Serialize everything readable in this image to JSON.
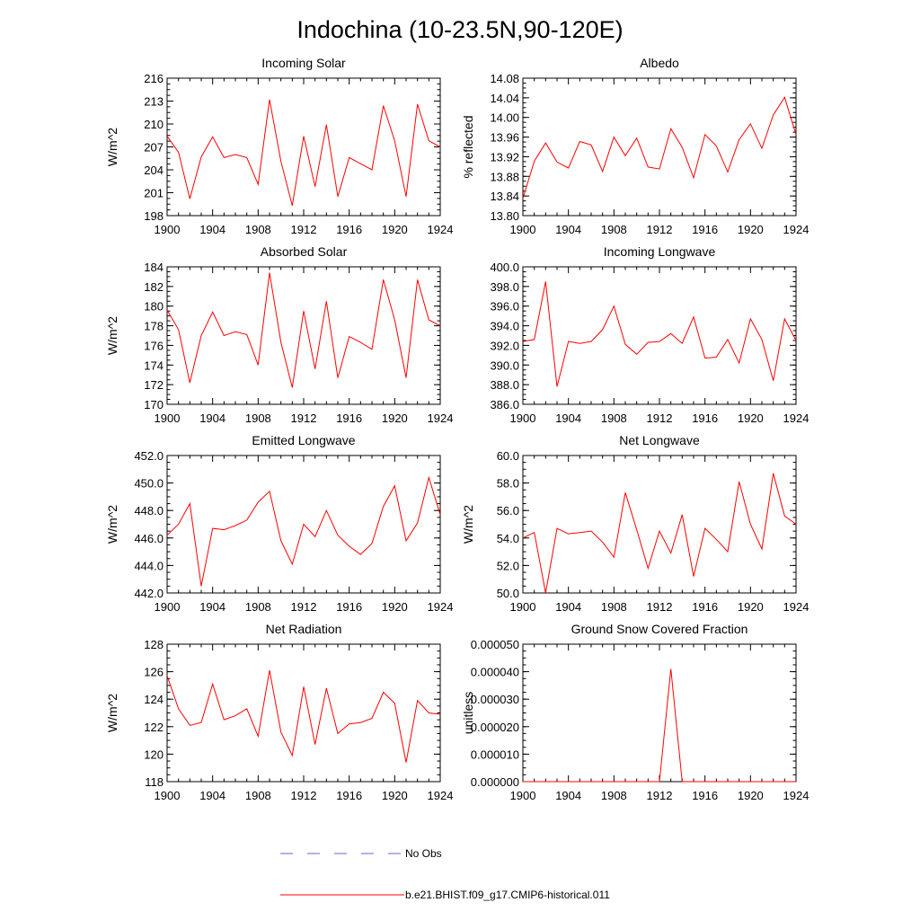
{
  "title": "Indochina (10-23.5N,90-120E)",
  "legend": [
    {
      "label": "No Obs",
      "color": "#6666cc",
      "dash": true
    },
    {
      "label": "b.e21.BHIST.f09_g17.CMIP6-historical.011",
      "color": "#ff0000",
      "dash": false
    }
  ],
  "line_color": "#ff0000",
  "chart_data": [
    {
      "type": "line",
      "title": "Incoming Solar",
      "ylabel": "W/m^2",
      "xlim": [
        1900,
        1924
      ],
      "ylim": [
        198,
        216
      ],
      "xticks": [
        "1900",
        "1904",
        "1908",
        "1912",
        "1916",
        "1920",
        "1924"
      ],
      "yticks": [
        "198",
        "201",
        "204",
        "207",
        "210",
        "213",
        "216"
      ],
      "x": [
        1900,
        1901,
        1902,
        1903,
        1904,
        1905,
        1906,
        1907,
        1908,
        1909,
        1910,
        1911,
        1912,
        1913,
        1914,
        1915,
        1916,
        1917,
        1918,
        1919,
        1920,
        1921,
        1922,
        1923,
        1924
      ],
      "values": [
        208.4,
        206.3,
        200.2,
        205.7,
        208.3,
        205.6,
        206.0,
        205.6,
        202.1,
        213.2,
        205.1,
        199.3,
        208.4,
        201.8,
        209.9,
        200.5,
        205.6,
        204.8,
        204.0,
        212.4,
        207.8,
        200.5,
        212.6,
        207.8,
        207.0
      ]
    },
    {
      "type": "line",
      "title": "Albedo",
      "ylabel": "% reflected",
      "xlim": [
        1900,
        1924
      ],
      "ylim": [
        13.8,
        14.08
      ],
      "xticks": [
        "1900",
        "1904",
        "1908",
        "1912",
        "1916",
        "1920",
        "1924"
      ],
      "yticks": [
        "13.80",
        "13.84",
        "13.88",
        "13.92",
        "13.96",
        "14.00",
        "14.04",
        "14.08"
      ],
      "x": [
        1900,
        1901,
        1902,
        1903,
        1904,
        1905,
        1906,
        1907,
        1908,
        1909,
        1910,
        1911,
        1912,
        1913,
        1914,
        1915,
        1916,
        1917,
        1918,
        1919,
        1920,
        1921,
        1922,
        1923,
        1924
      ],
      "values": [
        13.835,
        13.911,
        13.948,
        13.909,
        13.897,
        13.951,
        13.944,
        13.89,
        13.96,
        13.922,
        13.958,
        13.899,
        13.895,
        13.977,
        13.939,
        13.877,
        13.965,
        13.942,
        13.889,
        13.955,
        13.987,
        13.937,
        14.005,
        14.041,
        13.965
      ]
    },
    {
      "type": "line",
      "title": "Absorbed Solar",
      "ylabel": "W/m^2",
      "xlim": [
        1900,
        1924
      ],
      "ylim": [
        170,
        184
      ],
      "xticks": [
        "1900",
        "1904",
        "1908",
        "1912",
        "1916",
        "1920",
        "1924"
      ],
      "yticks": [
        "170",
        "172",
        "174",
        "176",
        "178",
        "180",
        "182",
        "184"
      ],
      "x": [
        1900,
        1901,
        1902,
        1903,
        1904,
        1905,
        1906,
        1907,
        1908,
        1909,
        1910,
        1911,
        1912,
        1913,
        1914,
        1915,
        1916,
        1917,
        1918,
        1919,
        1920,
        1921,
        1922,
        1923,
        1924
      ],
      "values": [
        179.6,
        177.6,
        172.2,
        177.0,
        179.4,
        177.0,
        177.4,
        177.1,
        174.0,
        183.4,
        176.3,
        171.7,
        179.5,
        173.6,
        180.5,
        172.7,
        176.9,
        176.3,
        175.6,
        182.7,
        178.6,
        172.7,
        182.7,
        178.6,
        178.0
      ]
    },
    {
      "type": "line",
      "title": "Incoming Longwave",
      "ylabel": "",
      "xlim": [
        1900,
        1924
      ],
      "ylim": [
        386.0,
        400.0
      ],
      "xticks": [
        "1900",
        "1904",
        "1908",
        "1912",
        "1916",
        "1920",
        "1924"
      ],
      "yticks": [
        "386.0",
        "388.0",
        "390.0",
        "392.0",
        "394.0",
        "396.0",
        "398.0",
        "400.0"
      ],
      "x": [
        1900,
        1901,
        1902,
        1903,
        1904,
        1905,
        1906,
        1907,
        1908,
        1909,
        1910,
        1911,
        1912,
        1913,
        1914,
        1915,
        1916,
        1917,
        1918,
        1919,
        1920,
        1921,
        1922,
        1923,
        1924
      ],
      "values": [
        392.4,
        392.6,
        398.5,
        387.8,
        392.4,
        392.2,
        392.4,
        393.6,
        396.0,
        392.1,
        391.1,
        392.3,
        392.4,
        393.2,
        392.2,
        394.9,
        390.7,
        390.8,
        392.6,
        390.2,
        394.7,
        392.6,
        388.4,
        394.7,
        392.5
      ]
    },
    {
      "type": "line",
      "title": "Emitted Longwave",
      "ylabel": "W/m^2",
      "xlim": [
        1900,
        1924
      ],
      "ylim": [
        442.0,
        452.0
      ],
      "xticks": [
        "1900",
        "1904",
        "1908",
        "1912",
        "1916",
        "1920",
        "1924"
      ],
      "yticks": [
        "442.0",
        "444.0",
        "446.0",
        "448.0",
        "450.0",
        "452.0"
      ],
      "x": [
        1900,
        1901,
        1902,
        1903,
        1904,
        1905,
        1906,
        1907,
        1908,
        1909,
        1910,
        1911,
        1912,
        1913,
        1914,
        1915,
        1916,
        1917,
        1918,
        1919,
        1920,
        1921,
        1922,
        1923,
        1924
      ],
      "values": [
        446.2,
        447.0,
        448.5,
        442.5,
        446.7,
        446.6,
        446.9,
        447.3,
        448.6,
        449.4,
        445.8,
        444.1,
        447.0,
        446.1,
        448.0,
        446.2,
        445.4,
        444.8,
        445.6,
        448.3,
        449.8,
        445.8,
        447.1,
        450.4,
        447.7
      ]
    },
    {
      "type": "line",
      "title": "Net Longwave",
      "ylabel": "W/m^2",
      "xlim": [
        1900,
        1924
      ],
      "ylim": [
        50.0,
        60.0
      ],
      "xticks": [
        "1900",
        "1904",
        "1908",
        "1912",
        "1916",
        "1920",
        "1924"
      ],
      "yticks": [
        "50.0",
        "52.0",
        "54.0",
        "56.0",
        "58.0",
        "60.0"
      ],
      "x": [
        1900,
        1901,
        1902,
        1903,
        1904,
        1905,
        1906,
        1907,
        1908,
        1909,
        1910,
        1911,
        1912,
        1913,
        1914,
        1915,
        1916,
        1917,
        1918,
        1919,
        1920,
        1921,
        1922,
        1923,
        1924
      ],
      "values": [
        54.0,
        54.4,
        50.0,
        54.7,
        54.3,
        54.4,
        54.5,
        53.7,
        52.6,
        57.3,
        54.6,
        51.8,
        54.5,
        52.9,
        55.7,
        51.2,
        54.7,
        53.9,
        53.0,
        58.1,
        55.0,
        53.2,
        58.7,
        55.6,
        55.0
      ]
    },
    {
      "type": "line",
      "title": "Net Radiation",
      "ylabel": "W/m^2",
      "xlim": [
        1900,
        1924
      ],
      "ylim": [
        118,
        128
      ],
      "xticks": [
        "1900",
        "1904",
        "1908",
        "1912",
        "1916",
        "1920",
        "1924"
      ],
      "yticks": [
        "118",
        "120",
        "122",
        "124",
        "126",
        "128"
      ],
      "x": [
        1900,
        1901,
        1902,
        1903,
        1904,
        1905,
        1906,
        1907,
        1908,
        1909,
        1910,
        1911,
        1912,
        1913,
        1914,
        1915,
        1916,
        1917,
        1918,
        1919,
        1920,
        1921,
        1922,
        1923,
        1924
      ],
      "values": [
        125.7,
        123.3,
        122.1,
        122.3,
        125.1,
        122.5,
        122.8,
        123.3,
        121.3,
        126.1,
        121.6,
        119.9,
        124.9,
        120.7,
        124.8,
        121.5,
        122.2,
        122.3,
        122.6,
        124.5,
        123.7,
        119.4,
        123.9,
        123.0,
        122.9
      ]
    },
    {
      "type": "line",
      "title": "Ground Snow Covered Fraction",
      "ylabel": "unitless",
      "xlim": [
        1900,
        1924
      ],
      "ylim": [
        0.0,
        5e-05
      ],
      "xticks": [
        "1900",
        "1904",
        "1908",
        "1912",
        "1916",
        "1920",
        "1924"
      ],
      "yticks": [
        "0.000000",
        "0.000010",
        "0.000020",
        "0.000030",
        "0.000040",
        "0.000050"
      ],
      "x": [
        1900,
        1901,
        1902,
        1903,
        1904,
        1905,
        1906,
        1907,
        1908,
        1909,
        1910,
        1911,
        1912,
        1913,
        1914,
        1915,
        1916,
        1917,
        1918,
        1919,
        1920,
        1921,
        1922,
        1923,
        1924
      ],
      "values": [
        0,
        0,
        0,
        0,
        0,
        0,
        0,
        0,
        0,
        0,
        0,
        0,
        0,
        4.1e-05,
        0,
        0,
        0,
        0,
        0,
        0,
        0,
        0,
        0,
        0,
        0
      ]
    }
  ]
}
